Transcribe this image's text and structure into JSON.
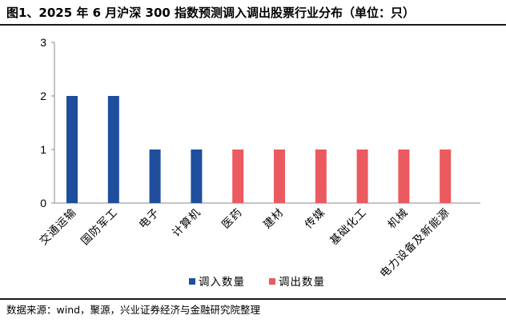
{
  "title": "图1、2025 年 6 月沪深 300 指数预测调入调出股票行业分布（单位：只）",
  "source": "数据来源：wind，聚源，兴业证券经济与金融研究院整理",
  "chart_data": {
    "type": "bar",
    "categories": [
      "交通运输",
      "国防军工",
      "电子",
      "计算机",
      "医药",
      "建材",
      "传媒",
      "基础化工",
      "机械",
      "电力设备及新能源"
    ],
    "series": [
      {
        "name": "调入数量",
        "color": "#1f4e9c",
        "values": [
          2,
          2,
          1,
          1,
          0,
          0,
          0,
          0,
          0,
          0
        ]
      },
      {
        "name": "调出数量",
        "color": "#eb5a5e",
        "values": [
          0,
          0,
          0,
          0,
          1,
          1,
          1,
          1,
          1,
          1
        ]
      }
    ],
    "yticks": [
      "0",
      "1",
      "2",
      "3"
    ],
    "ylim": [
      0,
      3
    ],
    "grid": false,
    "legend_position": "bottom"
  }
}
